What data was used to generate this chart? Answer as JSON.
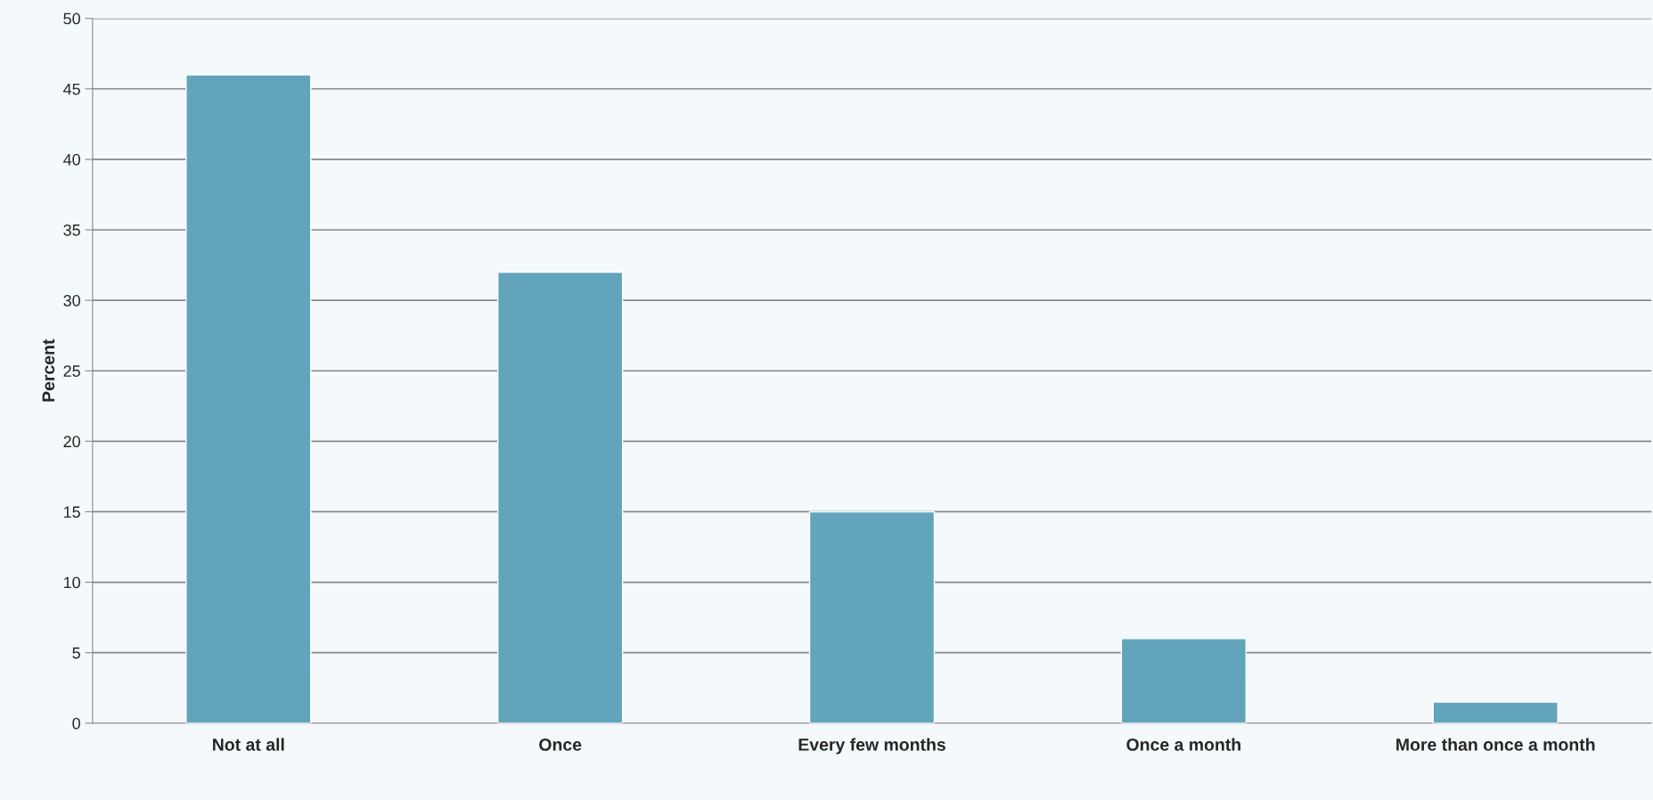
{
  "chart_data": {
    "type": "bar",
    "ylabel": "Percent",
    "categories": [
      "Not at all",
      "Once",
      "Every few months",
      "Once a month",
      "More than once a month"
    ],
    "values": [
      46,
      32,
      15,
      6,
      1.5
    ],
    "color": "#62a4bc",
    "ylim": [
      0,
      50
    ],
    "yticks": [
      0,
      5,
      10,
      15,
      20,
      25,
      30,
      35,
      40,
      45,
      50
    ],
    "grid": "y"
  }
}
